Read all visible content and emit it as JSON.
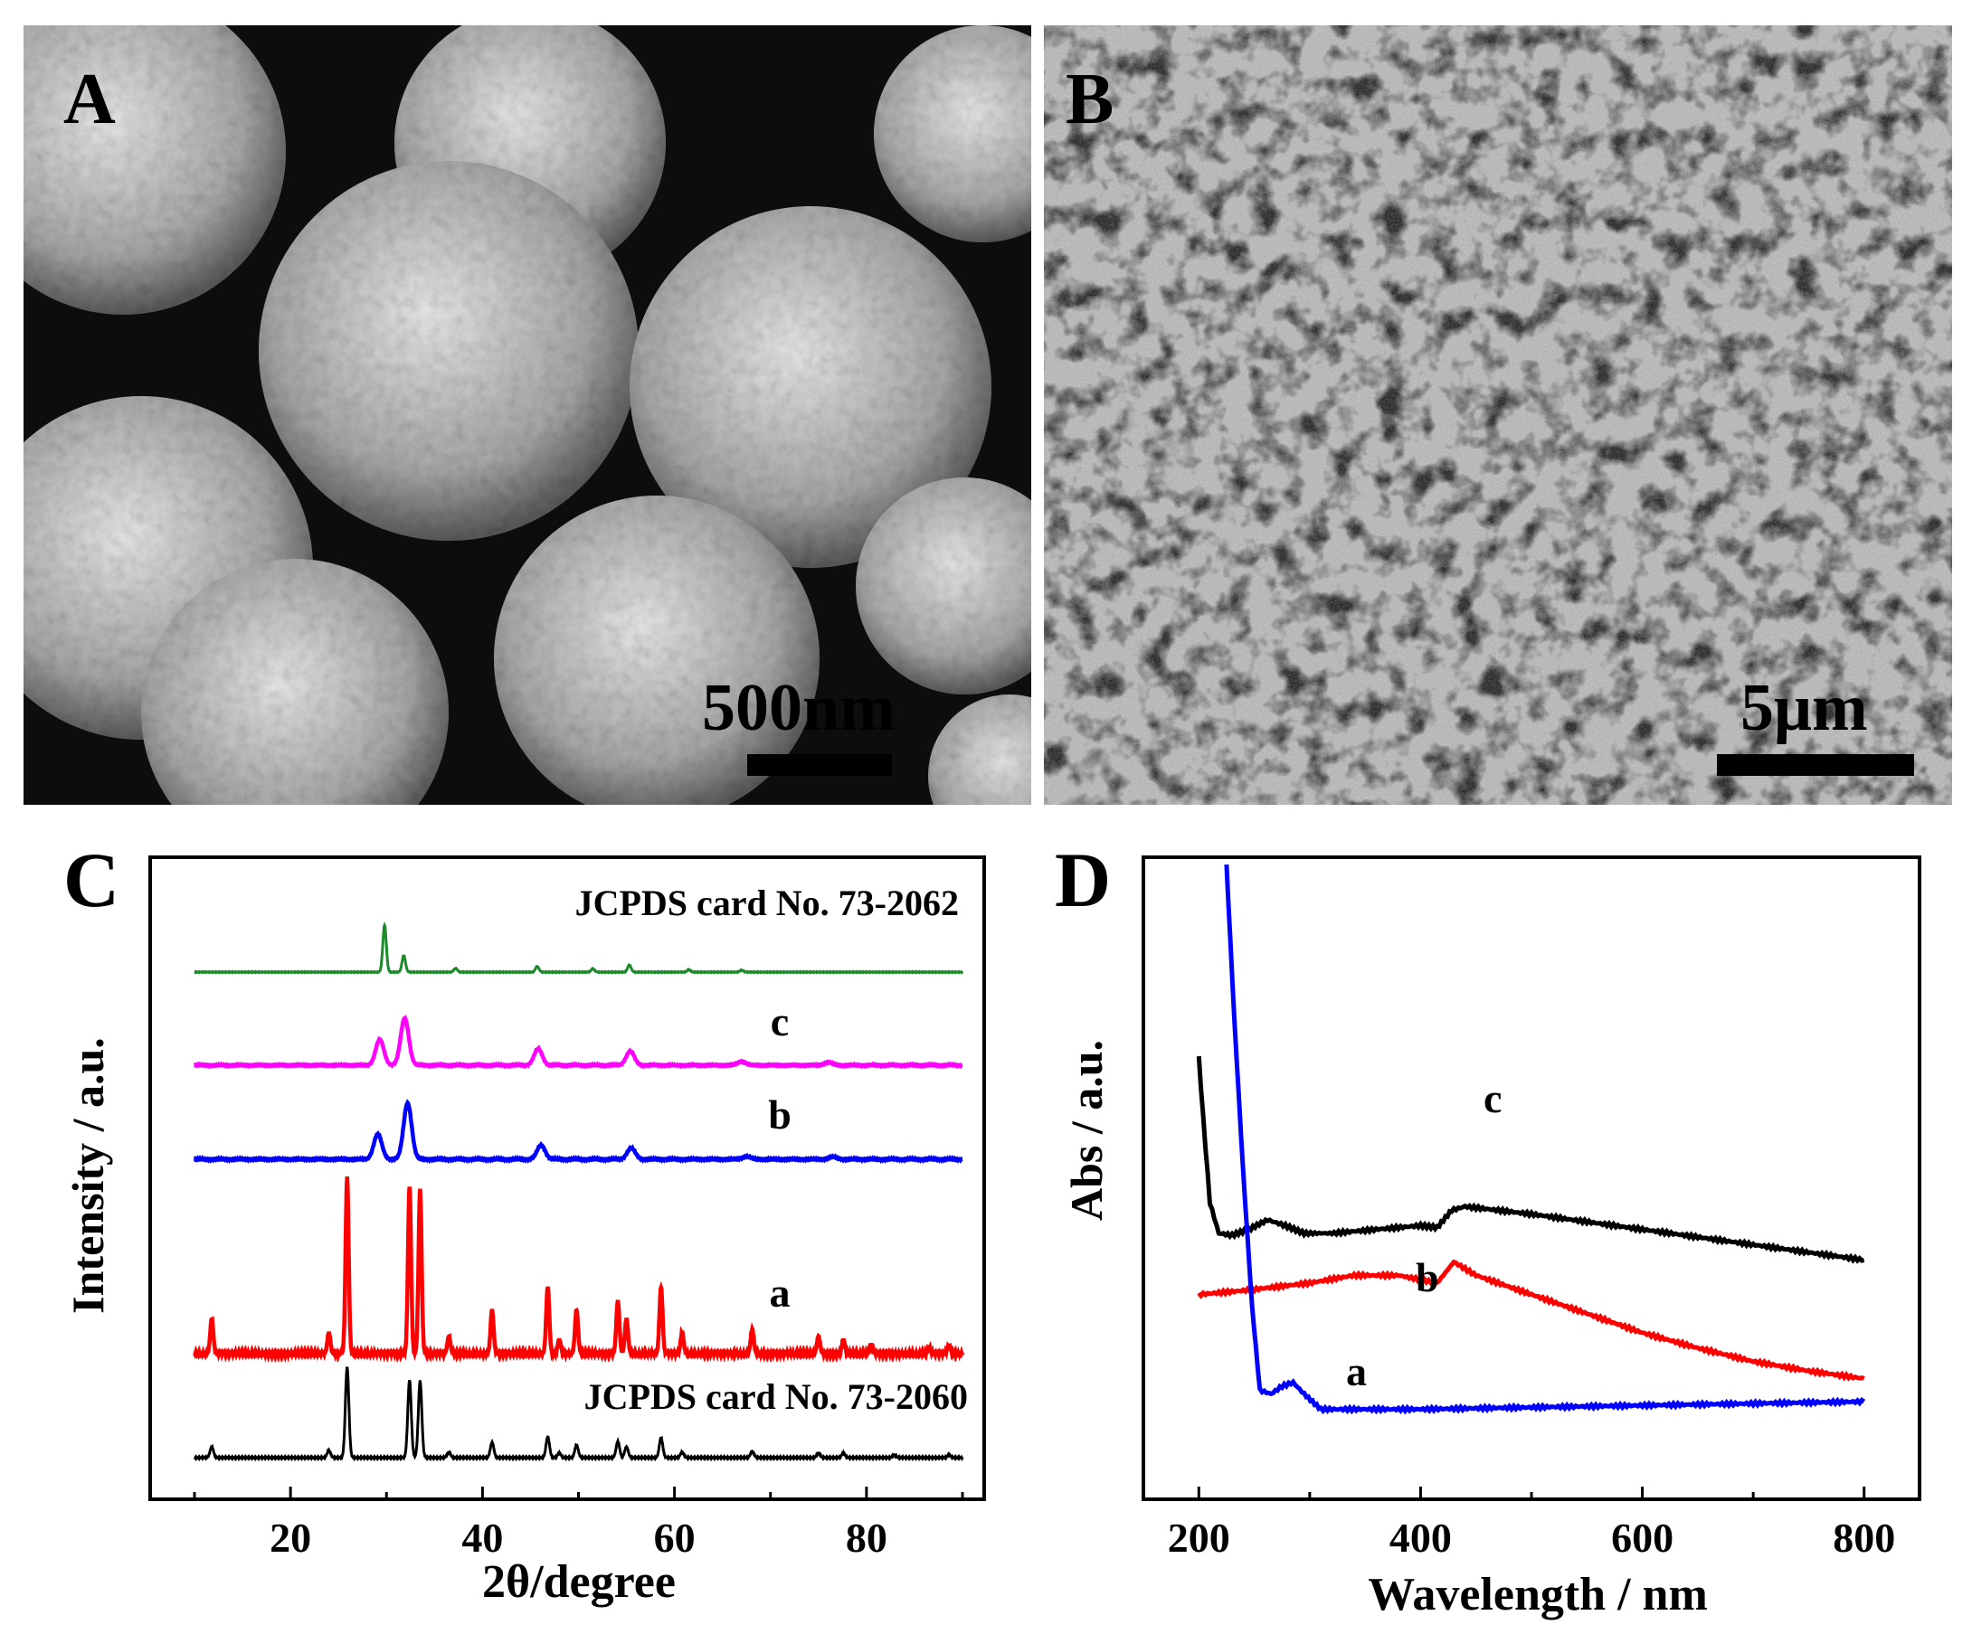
{
  "panels": {
    "a": {
      "letter": "A",
      "scale_text": "500nm"
    },
    "b": {
      "letter": "B",
      "scale_text": "5μm"
    },
    "c": {
      "letter": "C"
    },
    "d": {
      "letter": "D"
    }
  },
  "colors": {
    "green": "#1a8a2a",
    "magenta": "#ff00ff",
    "blue": "#0000ff",
    "red": "#ff0000",
    "black": "#000000"
  },
  "chart_data": [
    {
      "panel": "C",
      "type": "line",
      "xlabel": "2θ/degree",
      "ylabel": "Intensity / a.u.",
      "xlim": [
        10,
        90
      ],
      "xticks": [
        20,
        40,
        60,
        80
      ],
      "grid": false,
      "series": [
        {
          "name": "JCPDS card No. 73-2062",
          "color": "#1a8a2a",
          "peaks": [
            [
              29.8,
              100
            ],
            [
              31.8,
              35
            ],
            [
              37.2,
              8
            ],
            [
              45.7,
              12
            ],
            [
              51.5,
              7
            ],
            [
              55.3,
              15
            ],
            [
              61.5,
              5
            ],
            [
              67.0,
              4
            ]
          ]
        },
        {
          "name": "c",
          "color": "#ff00ff",
          "peaks": [
            [
              29.3,
              55
            ],
            [
              31.9,
              100
            ],
            [
              45.8,
              35
            ],
            [
              55.4,
              30
            ],
            [
              67.0,
              8
            ],
            [
              76.0,
              6
            ]
          ]
        },
        {
          "name": "b",
          "color": "#0000ff",
          "peaks": [
            [
              29.1,
              45
            ],
            [
              32.2,
              100
            ],
            [
              46.1,
              25
            ],
            [
              55.5,
              20
            ],
            [
              67.5,
              5
            ],
            [
              76.5,
              4
            ]
          ]
        },
        {
          "name": "a",
          "color": "#ff0000",
          "peaks": [
            [
              11.8,
              20
            ],
            [
              24.0,
              12
            ],
            [
              25.9,
              100
            ],
            [
              32.4,
              95
            ],
            [
              33.5,
              93
            ],
            [
              36.5,
              10
            ],
            [
              41.0,
              25
            ],
            [
              46.8,
              38
            ],
            [
              48.0,
              8
            ],
            [
              49.8,
              25
            ],
            [
              54.1,
              30
            ],
            [
              55.0,
              20
            ],
            [
              58.6,
              38
            ],
            [
              60.8,
              12
            ],
            [
              68.1,
              14
            ],
            [
              75.0,
              10
            ],
            [
              77.6,
              8
            ],
            [
              80.5,
              5
            ],
            [
              86.5,
              4
            ],
            [
              88.6,
              5
            ]
          ]
        },
        {
          "name": "JCPDS card No. 73-2060",
          "color": "#000000",
          "peaks": [
            [
              11.8,
              12
            ],
            [
              24.0,
              8
            ],
            [
              25.9,
              100
            ],
            [
              32.4,
              86
            ],
            [
              33.5,
              85
            ],
            [
              36.5,
              6
            ],
            [
              41.0,
              17
            ],
            [
              46.8,
              23
            ],
            [
              48.0,
              5
            ],
            [
              49.8,
              14
            ],
            [
              54.1,
              18
            ],
            [
              55.0,
              12
            ],
            [
              58.6,
              22
            ],
            [
              60.8,
              6
            ],
            [
              68.1,
              7
            ],
            [
              75.0,
              5
            ],
            [
              77.6,
              5
            ],
            [
              82.9,
              3
            ],
            [
              88.6,
              3
            ]
          ]
        }
      ]
    },
    {
      "panel": "D",
      "type": "line",
      "xlabel": "Wavelength / nm",
      "ylabel": "Abs / a.u.",
      "xlim": [
        150,
        850
      ],
      "xticks": [
        200,
        400,
        600,
        800
      ],
      "grid": false,
      "series": [
        {
          "name": "c",
          "color": "#000000",
          "points": [
            [
              200,
              0.8
            ],
            [
              204,
              0.64
            ],
            [
              210,
              0.42
            ],
            [
              218,
              0.34
            ],
            [
              230,
              0.335
            ],
            [
              245,
              0.35
            ],
            [
              262,
              0.375
            ],
            [
              278,
              0.36
            ],
            [
              295,
              0.34
            ],
            [
              320,
              0.34
            ],
            [
              360,
              0.35
            ],
            [
              400,
              0.36
            ],
            [
              415,
              0.355
            ],
            [
              428,
              0.4
            ],
            [
              440,
              0.41
            ],
            [
              500,
              0.39
            ],
            [
              600,
              0.35
            ],
            [
              700,
              0.31
            ],
            [
              800,
              0.27
            ]
          ]
        },
        {
          "name": "b",
          "color": "#ff0000",
          "points": [
            [
              200,
              0.18
            ],
            [
              240,
              0.19
            ],
            [
              300,
              0.21
            ],
            [
              340,
              0.23
            ],
            [
              380,
              0.23
            ],
            [
              415,
              0.21
            ],
            [
              430,
              0.265
            ],
            [
              450,
              0.23
            ],
            [
              500,
              0.18
            ],
            [
              550,
              0.13
            ],
            [
              600,
              0.08
            ],
            [
              650,
              0.04
            ],
            [
              700,
              0.005
            ],
            [
              750,
              -0.02
            ],
            [
              800,
              -0.04
            ]
          ]
        },
        {
          "name": "a",
          "color": "#0000ff",
          "points": [
            [
              225,
              1.3
            ],
            [
              232,
              0.9
            ],
            [
              240,
              0.5
            ],
            [
              248,
              0.15
            ],
            [
              255,
              -0.07
            ],
            [
              265,
              -0.08
            ],
            [
              275,
              -0.06
            ],
            [
              285,
              -0.05
            ],
            [
              295,
              -0.08
            ],
            [
              310,
              -0.12
            ],
            [
              400,
              -0.12
            ],
            [
              500,
              -0.115
            ],
            [
              600,
              -0.11
            ],
            [
              700,
              -0.105
            ],
            [
              800,
              -0.1
            ]
          ]
        }
      ]
    }
  ]
}
